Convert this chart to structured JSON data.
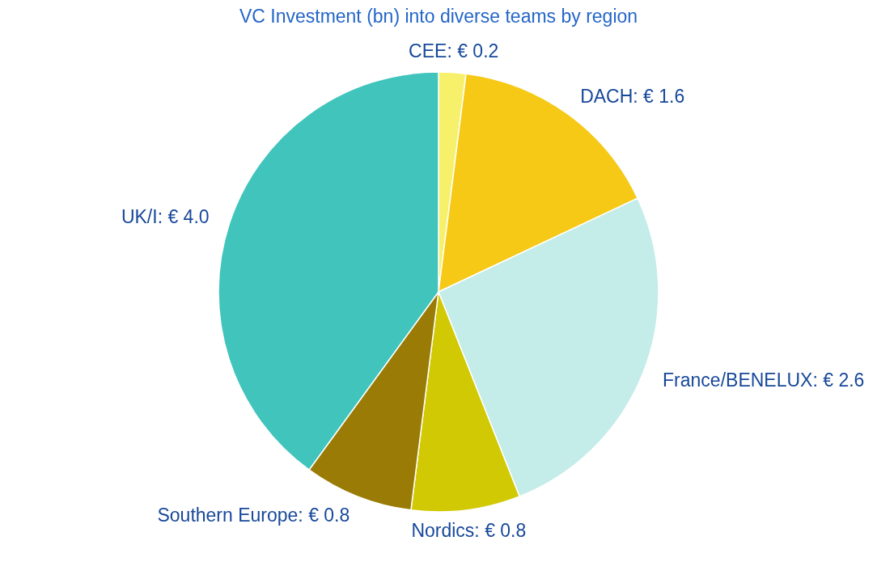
{
  "chart_data": {
    "type": "pie",
    "title": "VC Investment (bn) into diverse teams by region",
    "categories": [
      "CEE",
      "DACH",
      "France/BENELUX",
      "Nordics",
      "Southern Europe",
      "UK/I"
    ],
    "values": [
      0.2,
      1.6,
      2.6,
      0.8,
      0.8,
      4.0
    ],
    "value_labels": [
      "€ 0.2",
      "€ 1.6",
      "€ 2.6",
      "€ 0.8",
      "€ 0.8",
      "€ 4.0"
    ],
    "colors": [
      "#f7f06a",
      "#f5c916",
      "#c4ece9",
      "#d0c904",
      "#9a7b06",
      "#40c4bc"
    ],
    "legend": false
  }
}
